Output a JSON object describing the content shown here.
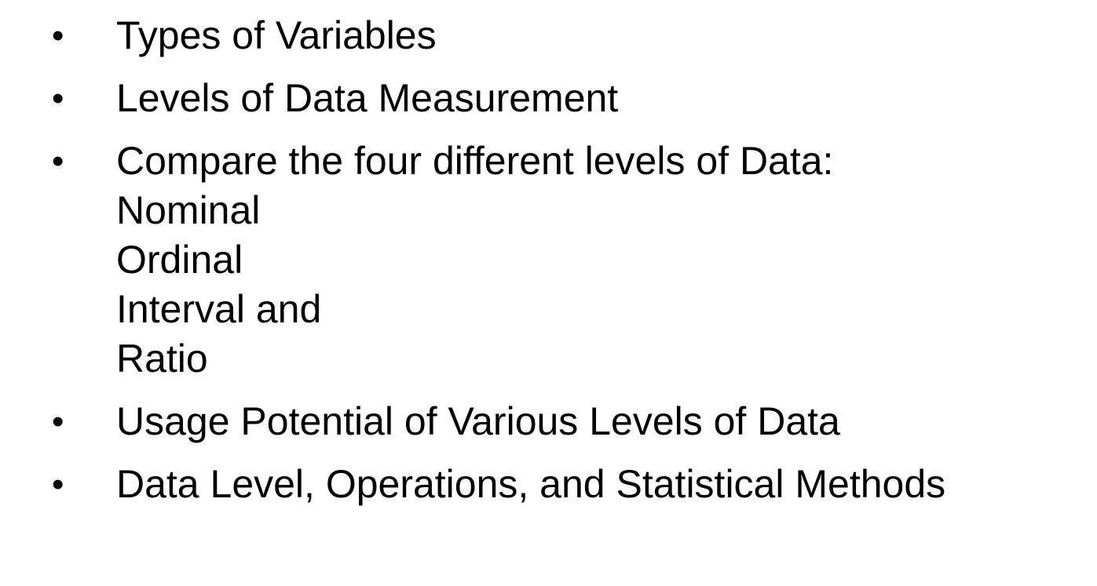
{
  "bullets": [
    {
      "text": "Types of Variables"
    },
    {
      "text": "Levels of Data Measurement"
    },
    {
      "text": "Compare the four different levels of Data:",
      "sub_lines": [
        "Nominal",
        "Ordinal",
        "Interval and",
        "Ratio"
      ]
    },
    {
      "text": "Usage Potential of Various Levels of Data"
    },
    {
      "text": "Data Level, Operations, and Statistical Methods"
    }
  ],
  "bullet_symbol": "•"
}
